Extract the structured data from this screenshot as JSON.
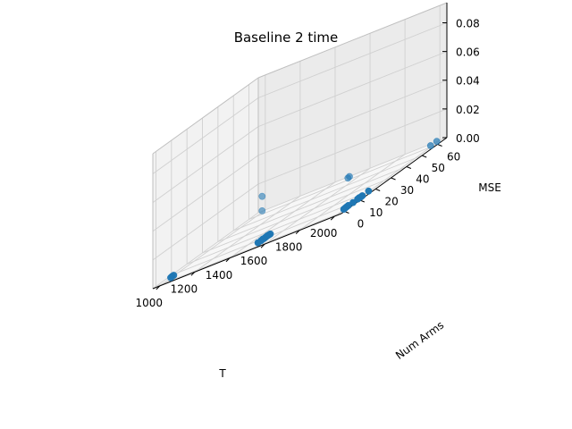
{
  "chart_data": {
    "type": "scatter",
    "title": "Baseline 2 time",
    "xlabel": "T",
    "ylabel": "Num Arms",
    "zlabel": "MSE",
    "xlim": [
      960,
      2040
    ],
    "ylim": [
      -2,
      66
    ],
    "zlim": [
      0,
      0.094
    ],
    "x_ticks": [
      1000,
      1200,
      1400,
      1600,
      1800,
      2000
    ],
    "y_ticks": [
      0,
      10,
      20,
      30,
      40,
      50,
      60
    ],
    "z_ticks": [
      "0.00",
      "0.02",
      "0.04",
      "0.06",
      "0.08"
    ],
    "grid": true,
    "color": "#1f77b4",
    "points": [
      {
        "x": 1000,
        "y": 5,
        "z": 0.0003
      },
      {
        "x": 1000,
        "y": 6,
        "z": 0.0005
      },
      {
        "x": 1000,
        "y": 7,
        "z": 0.0004
      },
      {
        "x": 1000,
        "y": 64,
        "z": 0.0009
      },
      {
        "x": 1000,
        "y": 64,
        "z": 0.011
      },
      {
        "x": 1500,
        "y": 5,
        "z": 0.0004
      },
      {
        "x": 1500,
        "y": 7,
        "z": 0.0003
      },
      {
        "x": 1500,
        "y": 8,
        "z": 0.0005
      },
      {
        "x": 1500,
        "y": 9,
        "z": 0.0003
      },
      {
        "x": 1500,
        "y": 10,
        "z": 0.0004
      },
      {
        "x": 1500,
        "y": 11,
        "z": 0.0005
      },
      {
        "x": 1500,
        "y": 12,
        "z": 0.0004
      },
      {
        "x": 1500,
        "y": 13,
        "z": 0.0003
      },
      {
        "x": 1500,
        "y": 64,
        "z": 0.0006
      },
      {
        "x": 1500,
        "y": 63,
        "z": 0.0003
      },
      {
        "x": 2000,
        "y": 4,
        "z": 0.0003
      },
      {
        "x": 2000,
        "y": 5,
        "z": 0.0004
      },
      {
        "x": 2000,
        "y": 6,
        "z": 0.0005
      },
      {
        "x": 2000,
        "y": 7,
        "z": 0.0006
      },
      {
        "x": 2000,
        "y": 10,
        "z": 0.0003
      },
      {
        "x": 2000,
        "y": 13,
        "z": 0.0004
      },
      {
        "x": 2000,
        "y": 14,
        "z": 0.0005
      },
      {
        "x": 2000,
        "y": 15,
        "z": 0.0003
      },
      {
        "x": 2000,
        "y": 16,
        "z": 0.0004
      },
      {
        "x": 2000,
        "y": 20,
        "z": 0.0005
      },
      {
        "x": 2000,
        "y": 60,
        "z": 0.001
      },
      {
        "x": 2000,
        "y": 64,
        "z": 0.0009
      }
    ]
  }
}
